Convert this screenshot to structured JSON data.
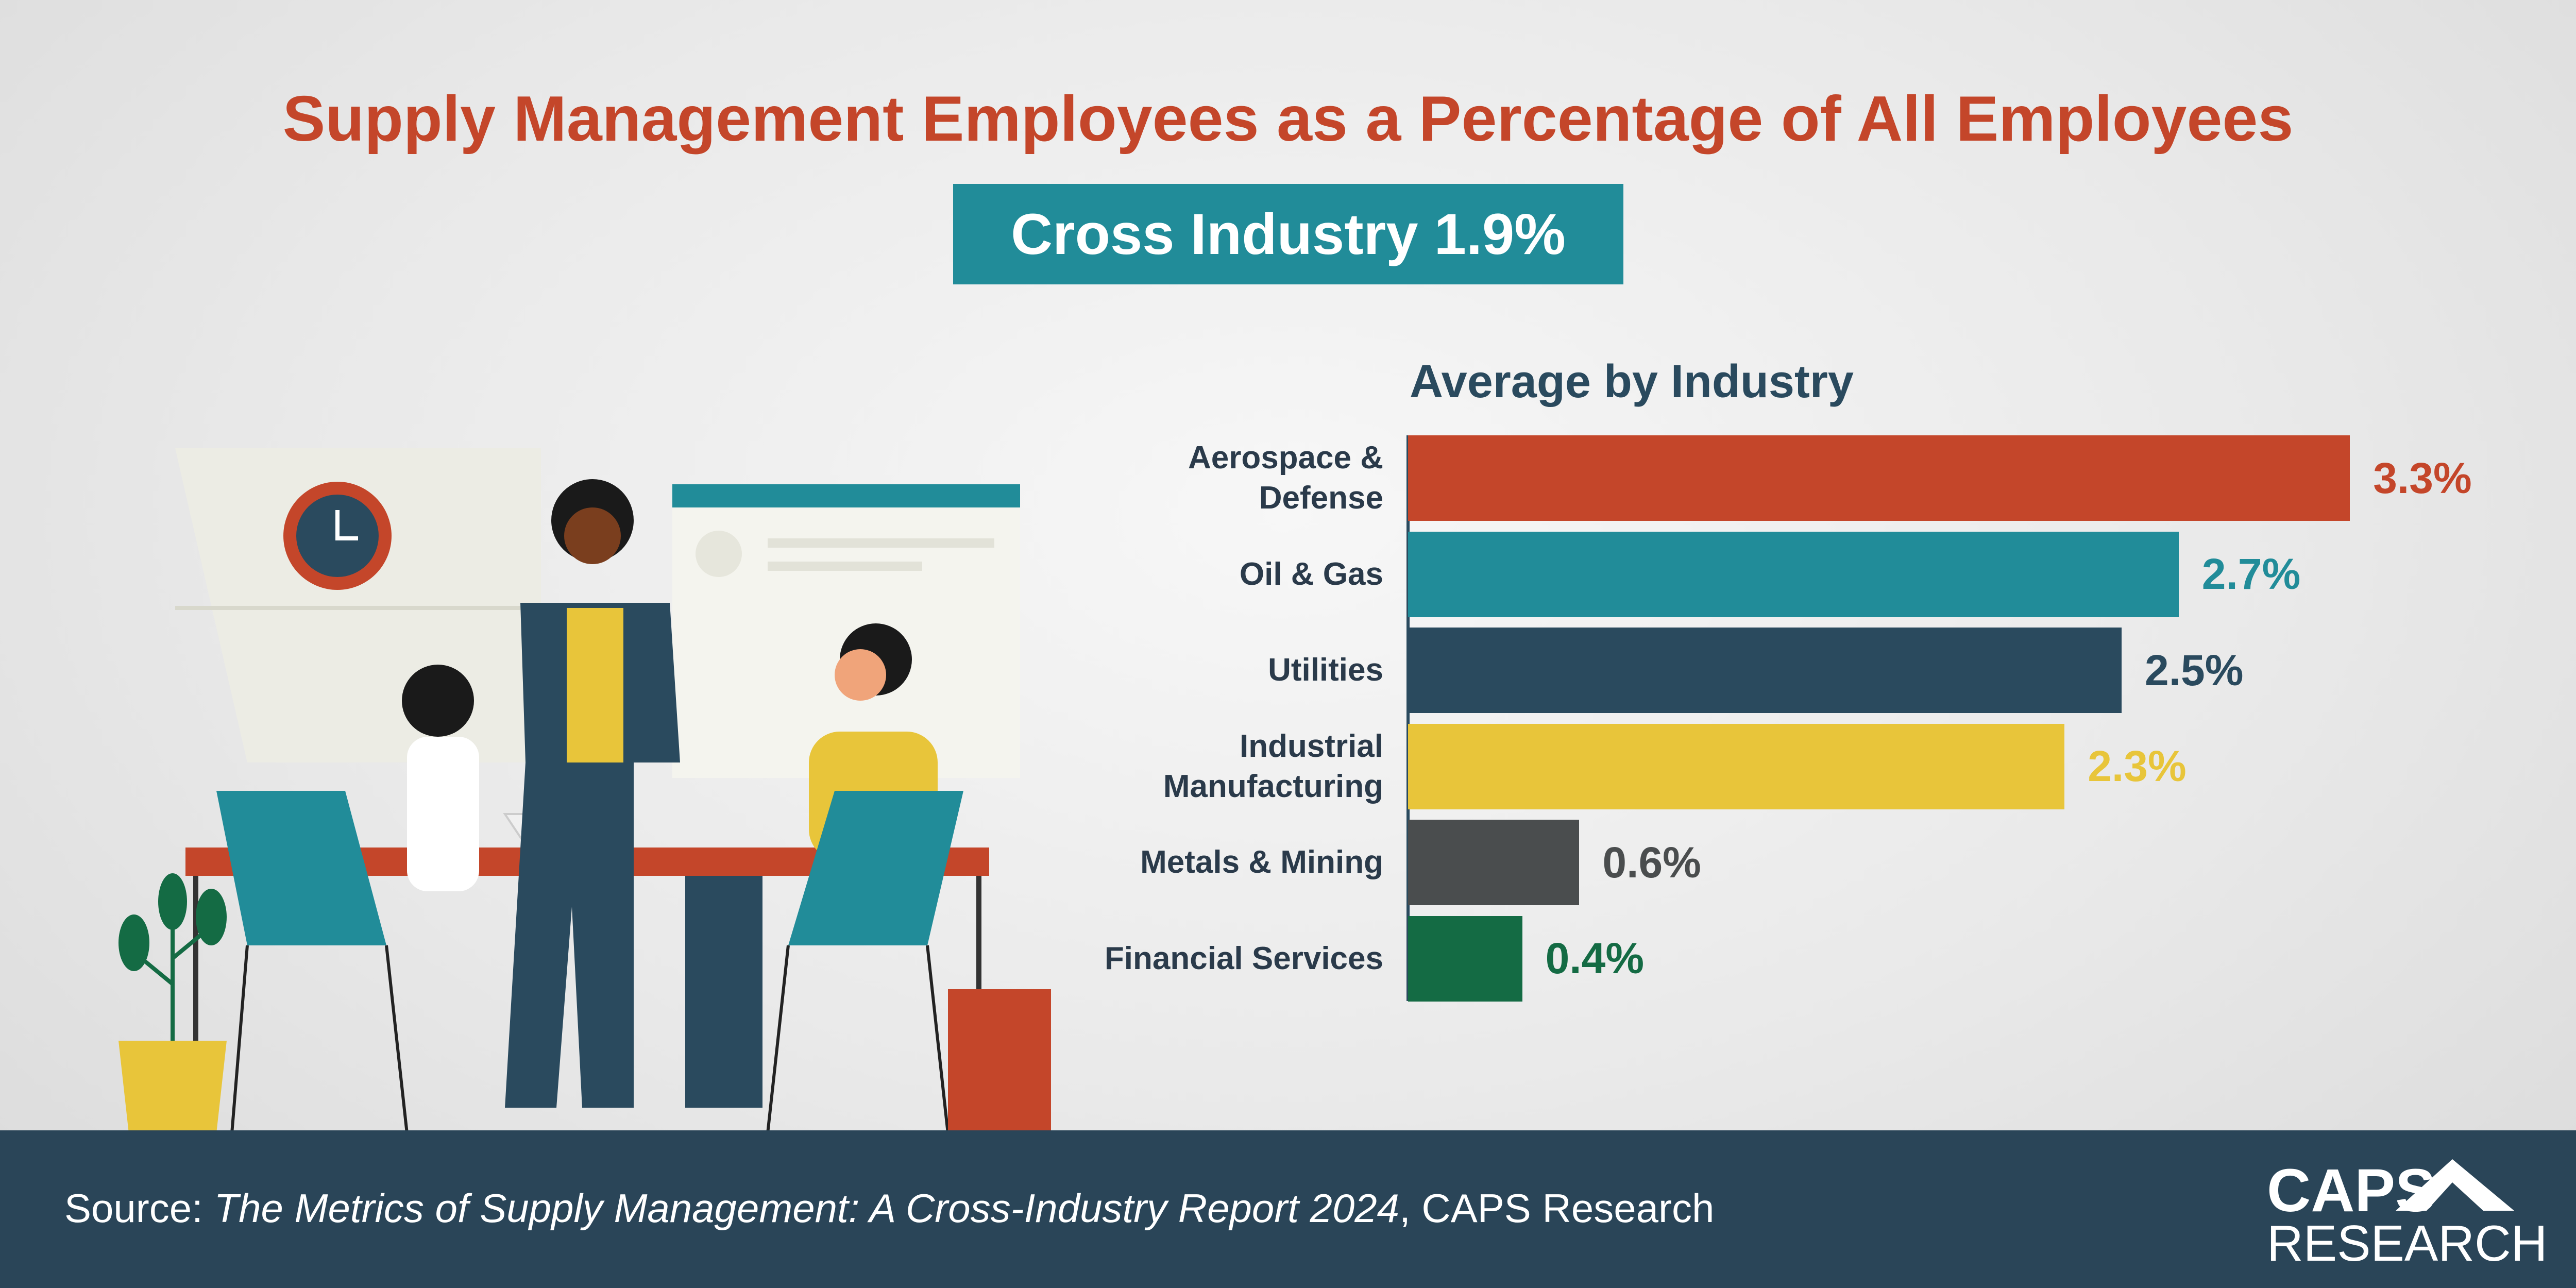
{
  "chart_data": {
    "type": "hbar",
    "title": "Supply Management Employees as a Percentage of All Employees",
    "subtitle": "Cross Industry 1.9%",
    "chart_title": "Average by Industry",
    "categories": [
      "Aerospace &\nDefense",
      "Oil & Gas",
      "Utilities",
      "Industrial\nManufacturing",
      "Metals & Mining",
      "Financial Services"
    ],
    "values": [
      3.3,
      2.7,
      2.5,
      2.3,
      0.6,
      0.4
    ],
    "value_labels": [
      "3.3%",
      "2.7%",
      "2.5%",
      "2.3%",
      "0.6%",
      "0.4%"
    ],
    "colors": [
      "#c4462a",
      "#218c99",
      "#2a4a5e",
      "#e8c53a",
      "#4a4d4e",
      "#146b44"
    ]
  },
  "footer": {
    "source_prefix": "Source: ",
    "source_title": "The Metrics of Supply Management: A Cross-Industry Report 2024",
    "source_suffix": ", CAPS Research",
    "logo_top": "CAPS",
    "logo_bottom": "RESEARCH"
  }
}
